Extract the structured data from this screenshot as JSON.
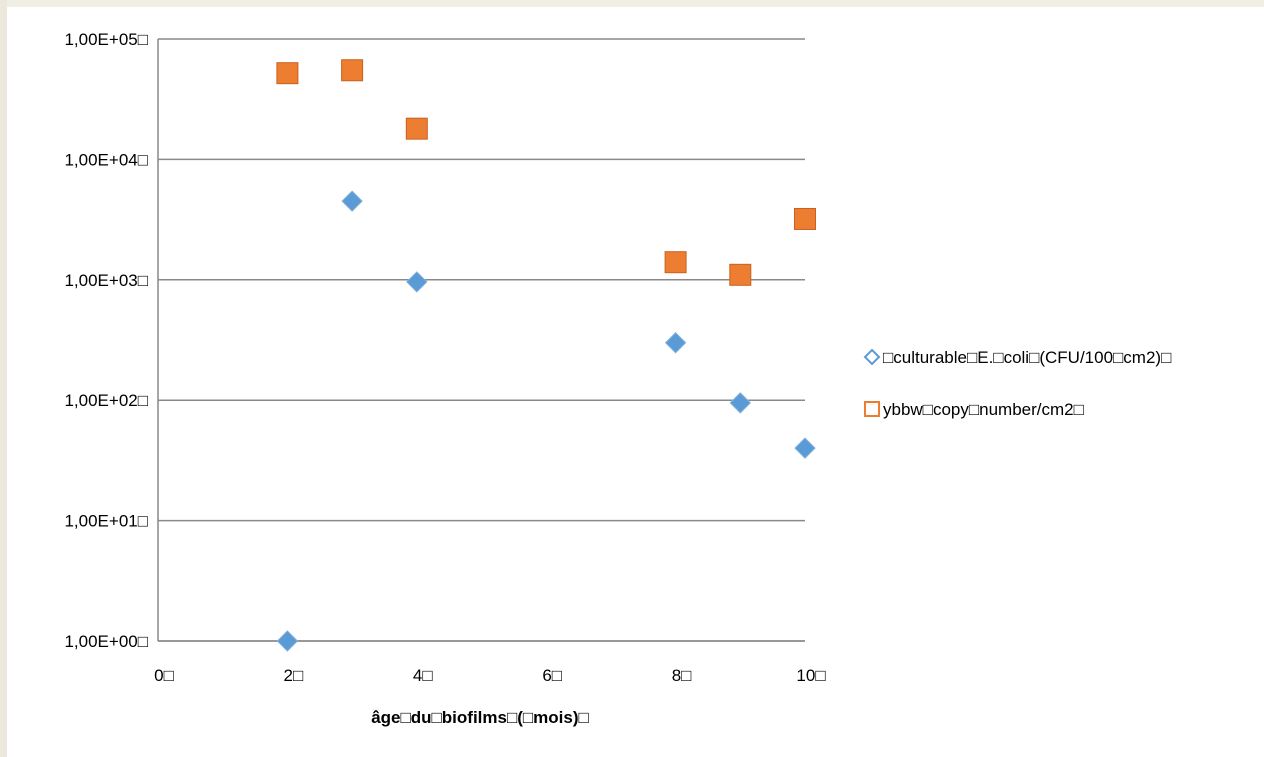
{
  "chart_data": {
    "type": "scatter",
    "title": "",
    "xlabel": "âge□du□biofilms□(□mois)□",
    "ylabel": "",
    "xlim": [
      0,
      10
    ],
    "ylim": [
      1,
      100000
    ],
    "y_scale": "log",
    "x_ticks": [
      0,
      2,
      4,
      6,
      8,
      10
    ],
    "x_tick_labels": [
      "0□",
      "2□",
      "4□",
      "6□",
      "8□",
      "10□"
    ],
    "y_ticks": [
      1,
      10,
      100,
      1000,
      10000,
      100000
    ],
    "y_tick_labels": [
      "1,00E+00□",
      "1,00E+01□",
      "1,00E+02□",
      "1,00E+03□",
      "1,00E+04□",
      "1,00E+05□"
    ],
    "grid": "horizontal",
    "legend_position": "right",
    "series": [
      {
        "name": "□culturable□E.□coli□(CFU/100□cm2)□",
        "marker": "diamond",
        "color": "#5b9bd5",
        "x": [
          2,
          3,
          4,
          8,
          9,
          10
        ],
        "y": [
          1,
          4500,
          960,
          300,
          95,
          40
        ]
      },
      {
        "name": "ybbw□copy□number/cm2□",
        "marker": "square",
        "color": "#ed7d31",
        "x": [
          2,
          3,
          4,
          8,
          9,
          10
        ],
        "y": [
          52000,
          55000,
          18000,
          1400,
          1100,
          3200
        ]
      }
    ]
  }
}
